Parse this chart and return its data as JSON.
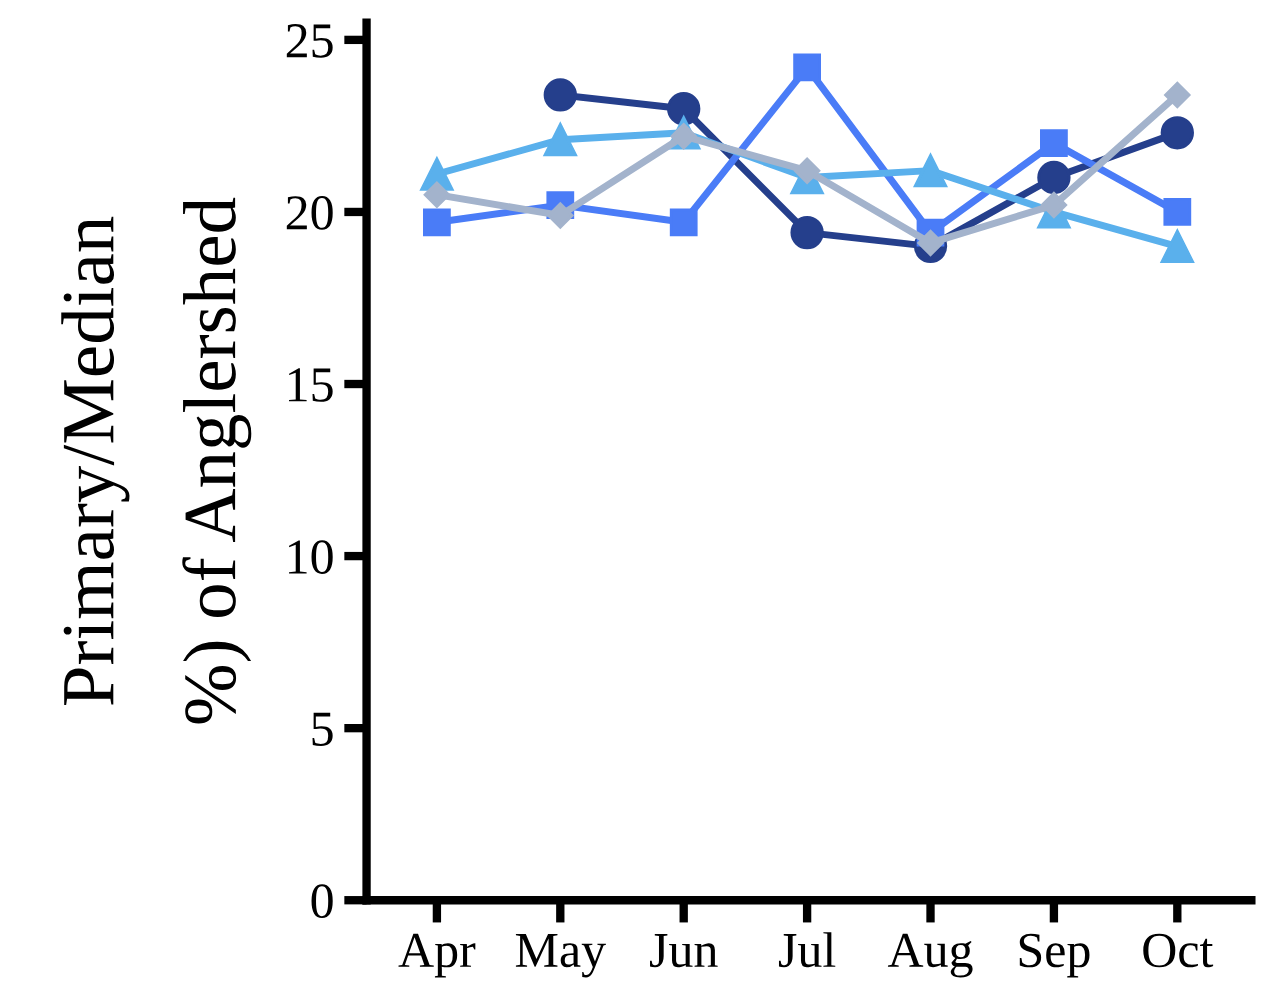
{
  "chart_data": {
    "type": "line",
    "ylabel": "Primary/Median\n%) of Anglershed",
    "categories": [
      "Apr",
      "May",
      "Jun",
      "Jul",
      "Aug",
      "Sep",
      "Oct"
    ],
    "series": [
      {
        "color": "#253f8c",
        "marker": "circle",
        "values": [
          null,
          23.4,
          23.0,
          19.4,
          19.0,
          21.0,
          22.3
        ]
      },
      {
        "color": "#4a7cf7",
        "marker": "square",
        "values": [
          19.7,
          20.2,
          19.7,
          24.2,
          19.4,
          22.0,
          20.0
        ]
      },
      {
        "color": "#5ab0ec",
        "marker": "triangle",
        "values": [
          21.1,
          22.1,
          22.3,
          21.0,
          21.2,
          20.0,
          19.0
        ]
      },
      {
        "color": "#a3b3cc",
        "marker": "diamond",
        "values": [
          20.5,
          19.9,
          22.2,
          21.2,
          19.1,
          20.2,
          23.4
        ]
      }
    ],
    "ylim": [
      0,
      25.5
    ],
    "yticks": [
      0,
      5,
      10,
      15,
      20,
      25
    ],
    "grid": false,
    "legend": false
  }
}
